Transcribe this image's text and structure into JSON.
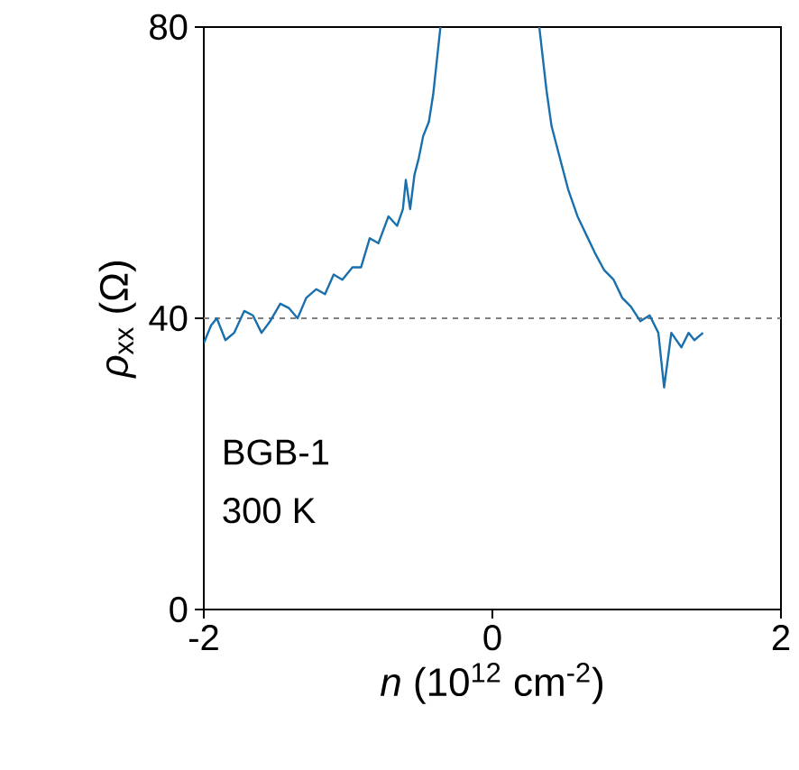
{
  "chart_data": {
    "type": "line",
    "xlabel": "*n* (10$^{12}$ cm$^{-2}$)",
    "ylabel": "*ρ*$_{xx}$ (Ω)",
    "xlim": [
      -2,
      2
    ],
    "ylim": [
      0,
      80
    ],
    "xticks": [
      -2,
      0,
      2
    ],
    "yticks": [
      0,
      40,
      80
    ],
    "ref_lines": [
      {
        "axis": "y",
        "value": 40,
        "color": "#808080",
        "line_style": "dashed"
      }
    ],
    "annotations": [
      "BGB-1",
      "300 K"
    ],
    "series": [
      {
        "color": "#1a6fad",
        "x": [
          -2,
          -1.95,
          -1.91,
          -1.85,
          -1.79,
          -1.72,
          -1.66,
          -1.6,
          -1.54,
          -1.47,
          -1.41,
          -1.35,
          -1.29,
          -1.22,
          -1.16,
          -1.1,
          -1.04,
          -0.97,
          -0.91,
          -0.85,
          -0.79,
          -0.72,
          -0.66,
          -0.62,
          -0.6,
          -0.57,
          -0.54,
          -0.51,
          -0.48,
          -0.44,
          -0.41,
          -0.36,
          null,
          0.325,
          0.375,
          0.41,
          0.46,
          0.525,
          0.59,
          0.65,
          0.71,
          0.775,
          0.84,
          0.9,
          0.96,
          1.025,
          1.09,
          1.15,
          1.19,
          1.24,
          1.31,
          1.36,
          1.4,
          1.46
        ],
        "values": [
          36.6,
          39,
          40,
          37,
          38,
          41,
          40.4,
          38,
          39.6,
          42,
          41.4,
          40,
          42.8,
          44,
          43.3,
          46,
          45.3,
          47,
          47,
          51,
          50.3,
          54,
          52.7,
          55,
          59,
          55,
          59.7,
          62,
          65,
          67,
          70.8,
          80,
          null,
          80,
          71.3,
          66.4,
          62.6,
          57.7,
          54,
          51.5,
          49,
          46.6,
          45.3,
          42.8,
          41.6,
          39.6,
          40.4,
          38,
          30.5,
          38,
          36,
          38,
          37,
          38
        ]
      }
    ]
  }
}
